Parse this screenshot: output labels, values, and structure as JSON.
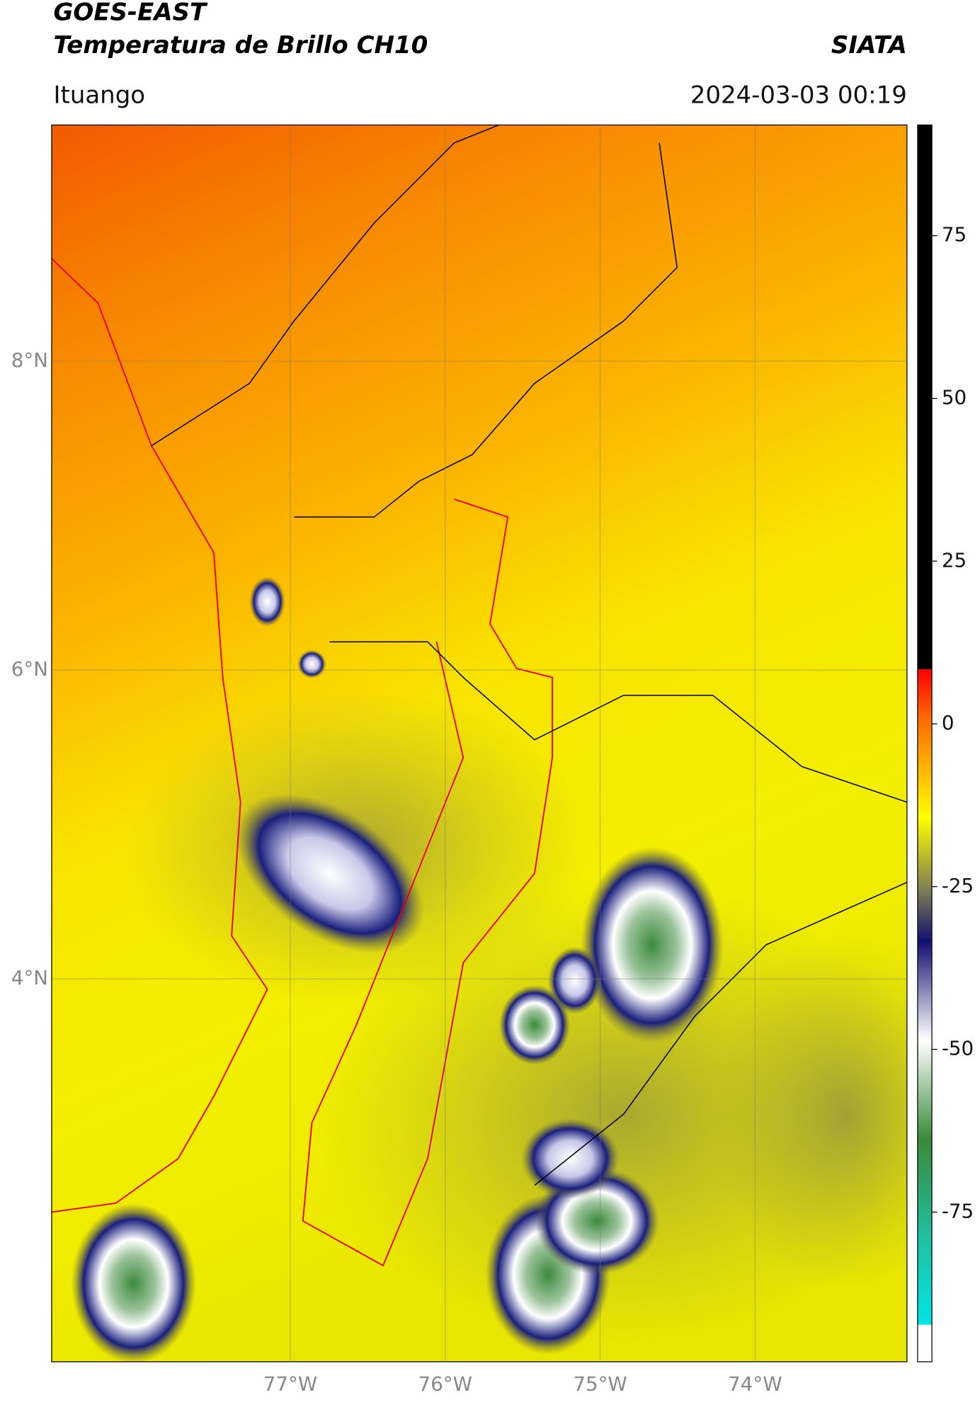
{
  "header": {
    "title": "GOES-EAST",
    "subtitle": "Temperatura de Brillo CH10",
    "brand": "SIATA",
    "location": "Ituango",
    "timestamp": "2024-03-03 00:19"
  },
  "map": {
    "xlim": [
      -78.54,
      -73.02
    ],
    "ylim": [
      1.52,
      9.53
    ],
    "xticks": [
      {
        "value": -77,
        "label": "77°W"
      },
      {
        "value": -76,
        "label": "76°W"
      },
      {
        "value": -75,
        "label": "75°W"
      },
      {
        "value": -74,
        "label": "74°W"
      }
    ],
    "yticks": [
      {
        "value": 8,
        "label": "8°N"
      },
      {
        "value": 6,
        "label": "6°N"
      },
      {
        "value": 4,
        "label": "4°N"
      }
    ]
  },
  "colorbar": {
    "lim": [
      -98,
      92
    ],
    "ticks": [
      75,
      50,
      25,
      0,
      -25,
      -50,
      -75
    ]
  }
}
